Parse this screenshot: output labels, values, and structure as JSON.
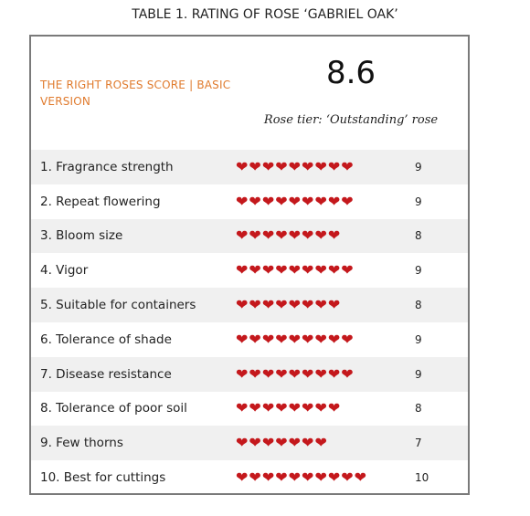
{
  "caption": "TABLE 1. RATING OF ROSE ‘GABRIEL OAK’",
  "score_label": "THE RIGHT ROSES SCORE | BASIC VERSION",
  "score": "8.6",
  "tier": "Rose tier: ‘Outstanding’ rose",
  "colors": {
    "accent": "#e07b2e",
    "heart": "#c4181c",
    "shade": "#f0f0f0"
  },
  "icon": "heart-icon",
  "rows": [
    {
      "label": " 1. Fragrance strength",
      "value": 9
    },
    {
      "label": "2. Repeat flowering",
      "value": 9
    },
    {
      "label": "3. Bloom size",
      "value": 8
    },
    {
      "label": "4. Vigor",
      "value": 9
    },
    {
      "label": "5. Suitable for containers",
      "value": 8
    },
    {
      "label": "6. Tolerance of shade",
      "value": 9
    },
    {
      "label": "7. Disease resistance",
      "value": 9
    },
    {
      "label": "8. Tolerance of poor soil",
      "value": 8
    },
    {
      "label": "9. Few thorns",
      "value": 7
    },
    {
      "label": "10. Best for cuttings",
      "value": 10
    }
  ]
}
